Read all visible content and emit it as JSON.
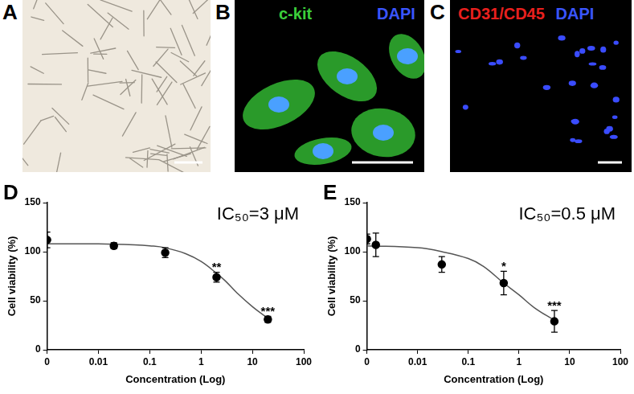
{
  "panels": [
    {
      "label": "A",
      "type": "image"
    },
    {
      "label": "B",
      "type": "image",
      "stains": [
        {
          "text": "c-kit",
          "color": "#3ccf3c"
        },
        {
          "text": "DAPI",
          "color": "#3a55ff"
        }
      ]
    },
    {
      "label": "C",
      "type": "image",
      "stains": [
        {
          "text": "CD31/CD45",
          "color": "#e8201e"
        },
        {
          "text": "DAPI",
          "color": "#3a55ff"
        }
      ]
    }
  ],
  "chart_data": [
    {
      "panel": "D",
      "type": "scatter",
      "annotation": "IC₅₀=3 μM",
      "x_label": "Concentration (Log)",
      "y_label": "Cell viability (%)",
      "log": "x",
      "grid": false,
      "xlim": [
        0.001,
        100
      ],
      "xticks": [
        {
          "value": 0.001,
          "label": "0"
        },
        0.01,
        0.1,
        1,
        10,
        100
      ],
      "ylim": [
        0,
        150
      ],
      "yticks": [
        0,
        50,
        100,
        150
      ],
      "series": [
        {
          "x": [
            0.001,
            0.02,
            0.2,
            2,
            20
          ],
          "values": [
            112,
            106,
            99,
            74,
            31
          ],
          "errors": [
            8,
            3,
            5,
            5,
            3
          ],
          "point_labels": [
            null,
            null,
            null,
            "**",
            "***"
          ],
          "color": "#000000",
          "marker": "circle",
          "line_style": "none"
        },
        {
          "type": "line",
          "x": [
            0.001,
            0.01,
            0.05,
            0.1,
            0.2,
            0.5,
            1,
            2,
            3,
            5,
            10,
            20
          ],
          "values": [
            108,
            108,
            107,
            106,
            104,
            98,
            90,
            78,
            70,
            58,
            44,
            32
          ],
          "color": "#555555",
          "marker": "none",
          "line_style": "solid"
        }
      ]
    },
    {
      "panel": "E",
      "type": "scatter",
      "annotation": "IC₅₀=0.5 μM",
      "x_label": "Concentration (Log)",
      "y_label": "Cell viability (%)",
      "log": "x",
      "grid": false,
      "xlim": [
        0.001,
        100
      ],
      "xticks": [
        {
          "value": 0.001,
          "label": "0"
        },
        0.01,
        0.1,
        1,
        10,
        100
      ],
      "ylim": [
        0,
        150
      ],
      "yticks": [
        0,
        50,
        100,
        150
      ],
      "series": [
        {
          "x": [
            0.001,
            0.0015,
            0.03,
            0.5,
            5
          ],
          "values": [
            113,
            107,
            87,
            68,
            29
          ],
          "errors": [
            5,
            12,
            8,
            12,
            11
          ],
          "point_labels": [
            null,
            null,
            null,
            "*",
            "***"
          ],
          "color": "#000000",
          "marker": "circle",
          "line_style": "none"
        },
        {
          "type": "line",
          "x": [
            0.001,
            0.01,
            0.03,
            0.1,
            0.2,
            0.5,
            1,
            2,
            5
          ],
          "values": [
            106,
            104,
            100,
            93,
            85,
            68,
            56,
            43,
            30
          ],
          "color": "#555555",
          "marker": "none",
          "line_style": "solid"
        }
      ]
    }
  ]
}
